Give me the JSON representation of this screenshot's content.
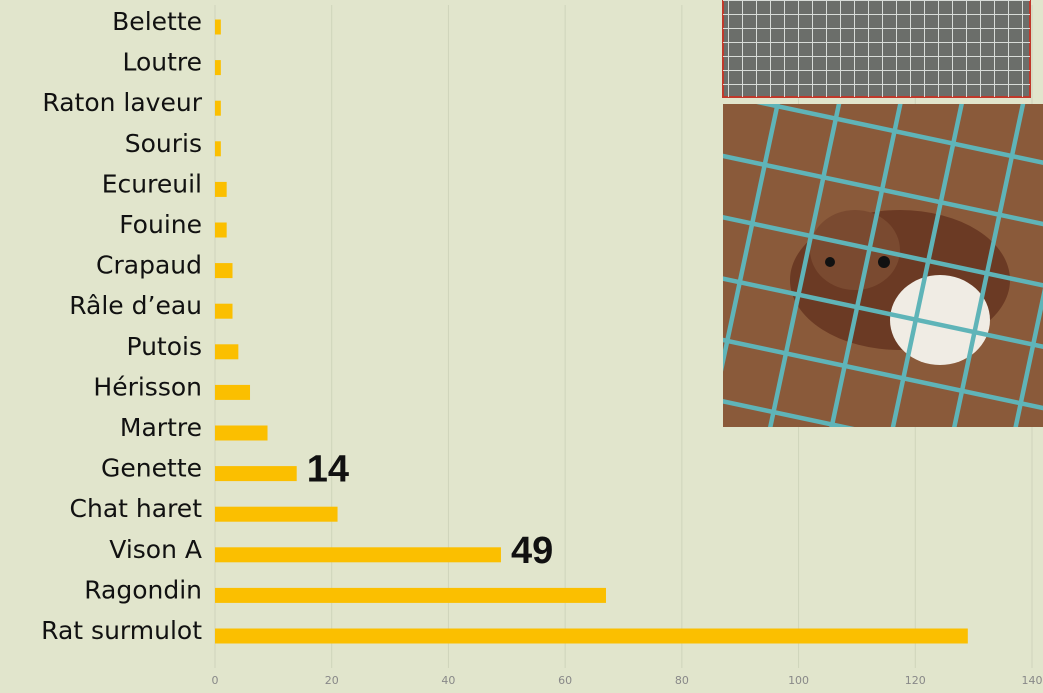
{
  "chart_data": {
    "type": "barh",
    "categories": [
      "Belette",
      "Loutre",
      "Raton laveur",
      "Souris",
      "Ecureuil",
      "Fouine",
      "Crapaud",
      "Râle d’eau",
      "Putois",
      "Hérisson",
      "Martre",
      "Genette",
      "Chat haret",
      "Vison A",
      "Ragondin",
      "Rat surmulot"
    ],
    "values": [
      1,
      1,
      1,
      1,
      2,
      2,
      3,
      3,
      4,
      6,
      9,
      14,
      21,
      49,
      67,
      129
    ],
    "value_labels": [
      null,
      null,
      null,
      null,
      null,
      null,
      null,
      null,
      null,
      null,
      null,
      "14",
      null,
      "49",
      null,
      null
    ],
    "color": "#fbbf00",
    "xlim": [
      0,
      140
    ],
    "xticks": [
      0,
      20,
      40,
      60,
      80,
      100,
      120,
      140
    ],
    "grid": true
  }
}
